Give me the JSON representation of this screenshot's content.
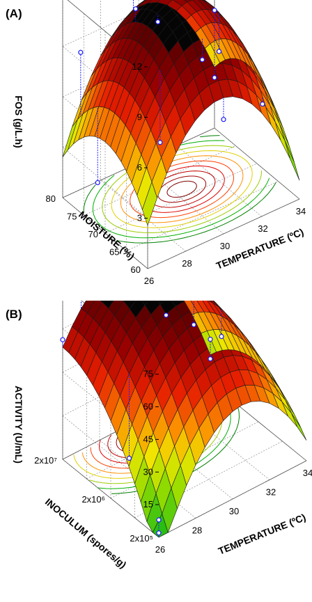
{
  "chart_data": [
    {
      "panel_label": "(A)",
      "type": "surface3d",
      "xlabel": "TEMPERATURE (ºC)",
      "ylabel": "MOISTURE (%)",
      "zlabel": "FOS (g/L.h)",
      "x_ticks": [
        "26",
        "28",
        "30",
        "32",
        "34"
      ],
      "y_ticks": [
        "60",
        "65",
        "70",
        "75",
        "80"
      ],
      "z_ticks": [
        "3",
        "6",
        "9",
        "12"
      ],
      "xlim": [
        26,
        34
      ],
      "ylim": [
        60,
        80
      ],
      "zlim": [
        0,
        12
      ],
      "surface_optimum": {
        "x": 30,
        "y": 70,
        "z": 11.6
      },
      "points": [
        {
          "x": 29.5,
          "y": 79,
          "z": 13.5
        },
        {
          "x": 28.5,
          "y": 74,
          "z": 11.2
        },
        {
          "x": 29,
          "y": 71,
          "z": 10.8
        },
        {
          "x": 32,
          "y": 70,
          "z": 7.7
        },
        {
          "x": 30,
          "y": 65,
          "z": 9.3
        },
        {
          "x": 32.5,
          "y": 62,
          "z": 6.0
        },
        {
          "x": 26.5,
          "y": 78,
          "z": 8.8
        },
        {
          "x": 26.5,
          "y": 74,
          "z": 1.9
        },
        {
          "x": 34,
          "y": 80,
          "z": 3.0
        },
        {
          "x": 34,
          "y": 80,
          "z": 7.0
        },
        {
          "x": 28,
          "y": 66,
          "z": 5.2
        },
        {
          "x": 30,
          "y": 60,
          "z": 6.8
        }
      ]
    },
    {
      "panel_label": "(B)",
      "type": "surface3d",
      "xlabel": "TEMPERATURE (ºC)",
      "ylabel": "INOCULUM (spores/g)",
      "zlabel": "ACTIVITY (U/mL)",
      "x_ticks": [
        "26",
        "28",
        "30",
        "32",
        "34"
      ],
      "y_ticks": [
        "2x10⁵",
        "2x10⁶",
        "2x10⁷"
      ],
      "z_ticks": [
        "15",
        "30",
        "45",
        "60",
        "75"
      ],
      "xlim": [
        26,
        34
      ],
      "ylim": [
        "2x10⁵",
        "2x10⁷"
      ],
      "zlim": [
        0,
        80
      ],
      "surface_optimum": {
        "x": 29,
        "y": "2x10⁷",
        "z": 78
      },
      "points": [
        {
          "x": 27,
          "y": "2x10⁷",
          "z": 78
        },
        {
          "x": 29,
          "y": "2x10⁶",
          "z": 71
        },
        {
          "x": 32,
          "y": "2x10⁶",
          "z": 48
        },
        {
          "x": 30.5,
          "y": "2x10⁶",
          "z": 60
        },
        {
          "x": 34,
          "y": "2x10⁷",
          "z": 20
        },
        {
          "x": 34,
          "y": "2x10⁷",
          "z": 11
        },
        {
          "x": 26,
          "y": "2x10⁵",
          "z": 8
        },
        {
          "x": 26,
          "y": "2x10⁵",
          "z": 2
        },
        {
          "x": 26,
          "y": "2x10⁷",
          "z": 55
        },
        {
          "x": 27,
          "y": "2x10⁶",
          "z": 14
        }
      ]
    }
  ]
}
